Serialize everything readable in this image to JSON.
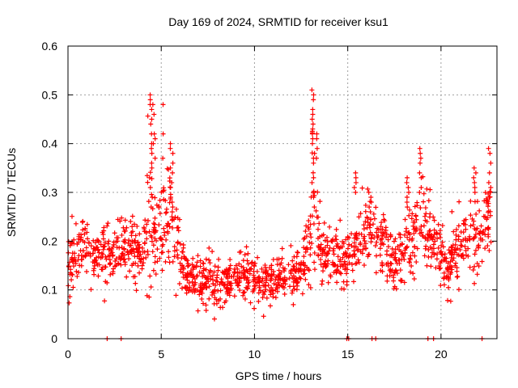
{
  "chart_data": {
    "type": "scatter",
    "title": "Day 169 of 2024, SRMTID for receiver ksu1",
    "xlabel": "GPS time / hours",
    "ylabel": "SRMTID / TECUs",
    "xlim": [
      0,
      23
    ],
    "ylim": [
      0,
      0.6
    ],
    "xticks": [
      0,
      5,
      10,
      15,
      20
    ],
    "xtick_labels": [
      "0",
      "5",
      "10",
      "15",
      "20"
    ],
    "yticks": [
      0,
      0.1,
      0.2,
      0.3,
      0.4,
      0.5,
      0.6
    ],
    "ytick_labels": [
      "0",
      "0.1",
      "0.2",
      "0.3",
      "0.4",
      "0.5",
      "0.6"
    ],
    "grid": true,
    "marker": "+",
    "color": "#ff0000",
    "series": [
      {
        "name": "SRMTID",
        "profile_hours": [
          0,
          0.3,
          0.7,
          1.0,
          1.4,
          1.8,
          2.2,
          2.6,
          3.0,
          3.4,
          3.8,
          4.1,
          4.4,
          4.6,
          4.9,
          5.2,
          5.5,
          5.8,
          6.1,
          6.5,
          7.0,
          7.5,
          8.0,
          8.5,
          9.0,
          9.5,
          10.0,
          10.5,
          11.0,
          11.5,
          12.0,
          12.5,
          12.9,
          13.1,
          13.3,
          13.6,
          14.0,
          14.5,
          15.0,
          15.3,
          15.6,
          16.0,
          16.4,
          16.8,
          17.2,
          17.6,
          18.0,
          18.4,
          18.7,
          19.0,
          19.3,
          19.7,
          20.0,
          20.4,
          20.8,
          21.2,
          21.6,
          22.0,
          22.4,
          22.7
        ],
        "profile_center": [
          0.15,
          0.17,
          0.2,
          0.19,
          0.17,
          0.16,
          0.17,
          0.18,
          0.19,
          0.19,
          0.18,
          0.2,
          0.27,
          0.22,
          0.21,
          0.24,
          0.26,
          0.2,
          0.15,
          0.13,
          0.12,
          0.12,
          0.11,
          0.12,
          0.12,
          0.13,
          0.12,
          0.11,
          0.12,
          0.13,
          0.13,
          0.14,
          0.18,
          0.26,
          0.22,
          0.17,
          0.17,
          0.16,
          0.17,
          0.18,
          0.2,
          0.22,
          0.23,
          0.21,
          0.17,
          0.16,
          0.18,
          0.21,
          0.22,
          0.23,
          0.22,
          0.19,
          0.17,
          0.15,
          0.18,
          0.2,
          0.21,
          0.22,
          0.24,
          0.27
        ],
        "profile_spread": [
          0.05,
          0.05,
          0.06,
          0.06,
          0.05,
          0.05,
          0.05,
          0.05,
          0.05,
          0.05,
          0.05,
          0.06,
          0.12,
          0.1,
          0.08,
          0.1,
          0.1,
          0.07,
          0.05,
          0.04,
          0.04,
          0.04,
          0.04,
          0.04,
          0.04,
          0.04,
          0.04,
          0.04,
          0.04,
          0.04,
          0.04,
          0.05,
          0.06,
          0.12,
          0.1,
          0.05,
          0.05,
          0.05,
          0.05,
          0.06,
          0.06,
          0.06,
          0.06,
          0.06,
          0.05,
          0.05,
          0.05,
          0.06,
          0.07,
          0.07,
          0.06,
          0.05,
          0.05,
          0.05,
          0.05,
          0.06,
          0.06,
          0.06,
          0.07,
          0.08
        ],
        "seed": 169,
        "n_points": 1500,
        "spikes": [
          {
            "x": 4.45,
            "values": [
              0.49,
              0.5,
              0.48,
              0.47,
              0.45,
              0.44,
              0.42,
              0.4,
              0.39,
              0.38,
              0.36,
              0.35,
              0.33,
              0.31,
              0.29
            ]
          },
          {
            "x": 4.6,
            "values": [
              0.48,
              0.46,
              0.42,
              0.41,
              0.4,
              0.37
            ]
          },
          {
            "x": 5.15,
            "values": [
              0.48,
              0.42,
              0.37
            ]
          },
          {
            "x": 5.55,
            "values": [
              0.4,
              0.39,
              0.38,
              0.36,
              0.35,
              0.34,
              0.32,
              0.31,
              0.29,
              0.28,
              0.26,
              0.25
            ]
          },
          {
            "x": 13.15,
            "values": [
              0.51,
              0.5,
              0.49,
              0.47,
              0.46,
              0.45,
              0.44,
              0.43,
              0.42,
              0.41,
              0.4,
              0.38,
              0.37,
              0.36,
              0.33,
              0.32,
              0.29,
              0.27
            ]
          },
          {
            "x": 13.35,
            "values": [
              0.42,
              0.41,
              0.39,
              0.37
            ]
          },
          {
            "x": 15.4,
            "values": [
              0.34,
              0.33,
              0.32,
              0.31,
              0.3
            ]
          },
          {
            "x": 16.2,
            "values": [
              0.3,
              0.29,
              0.28,
              0.27,
              0.26
            ]
          },
          {
            "x": 18.2,
            "values": [
              0.33,
              0.32,
              0.31,
              0.3,
              0.29,
              0.28,
              0.27
            ]
          },
          {
            "x": 18.9,
            "values": [
              0.39,
              0.38,
              0.37,
              0.36,
              0.34,
              0.33,
              0.31,
              0.3
            ]
          },
          {
            "x": 21.8,
            "values": [
              0.35,
              0.34,
              0.33,
              0.32,
              0.31,
              0.3
            ]
          },
          {
            "x": 22.6,
            "values": [
              0.39,
              0.38,
              0.36,
              0.34,
              0.32,
              0.31,
              0.3,
              0.29
            ]
          }
        ],
        "zero_points_x": [
          2.1,
          2.85,
          14.95,
          15.05,
          16.3,
          16.5,
          19.3,
          19.6,
          22.2
        ]
      }
    ]
  }
}
